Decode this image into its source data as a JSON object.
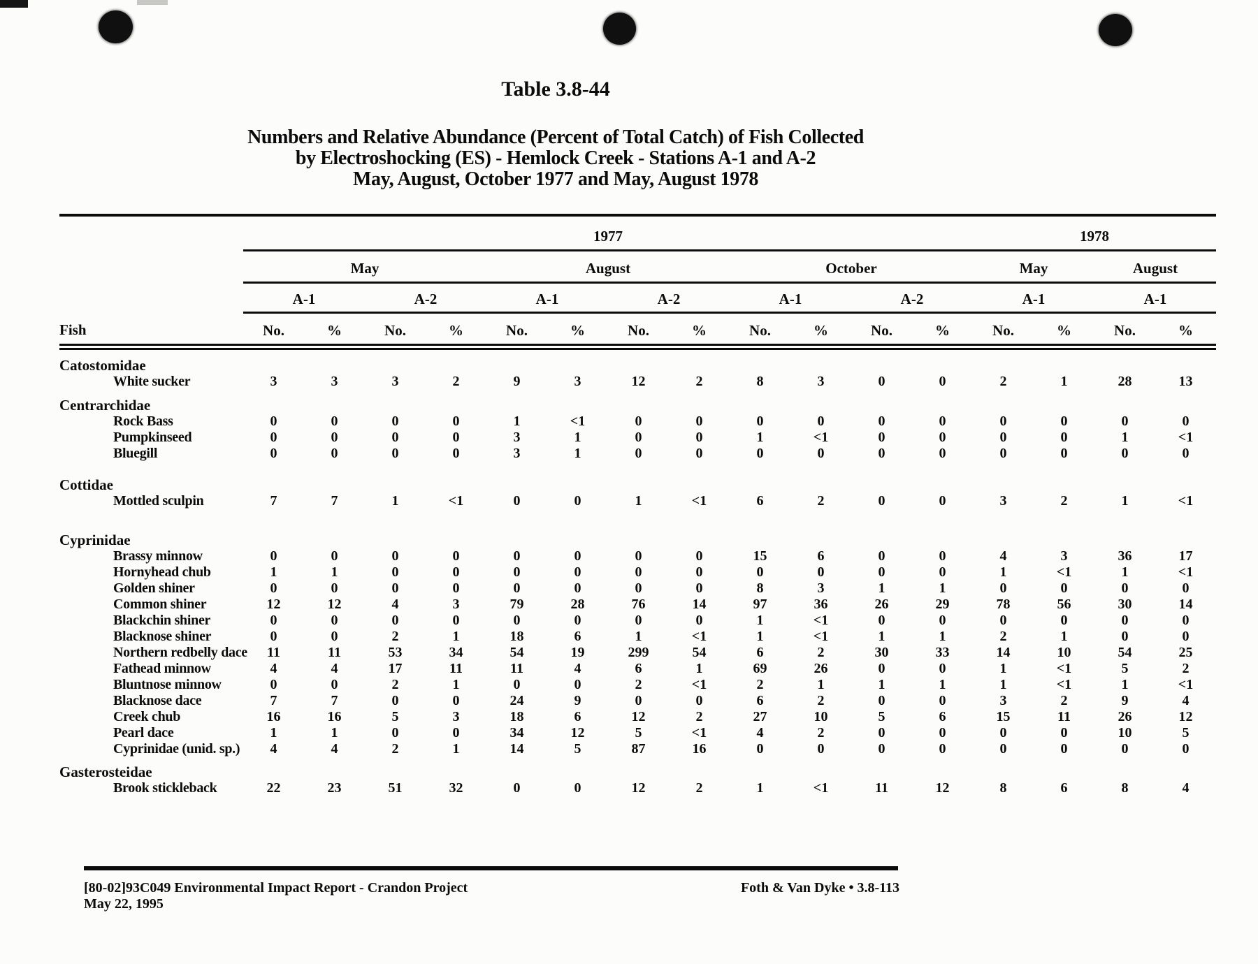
{
  "document": {
    "table_number": "Table 3.8-44",
    "title_lines": [
      "Numbers and Relative Abundance (Percent of Total Catch) of Fish Collected",
      "by Electroshocking (ES) - Hemlock Creek - Stations A-1 and A-2",
      "May, August, October 1977 and May, August 1978"
    ]
  },
  "scan_marks": {
    "punch_hole_count": 3
  },
  "table": {
    "row_header": "Fish",
    "year_groups": [
      {
        "label": "1977",
        "span": 12
      },
      {
        "label": "1978",
        "span": 4
      }
    ],
    "month_groups": [
      {
        "label": "May",
        "span": 4
      },
      {
        "label": "August",
        "span": 4
      },
      {
        "label": "October",
        "span": 4
      },
      {
        "label": "May",
        "span": 2
      },
      {
        "label": "August",
        "span": 2
      }
    ],
    "station_groups": [
      {
        "label": "A-1",
        "span": 2
      },
      {
        "label": "A-2",
        "span": 2
      },
      {
        "label": "A-1",
        "span": 2
      },
      {
        "label": "A-2",
        "span": 2
      },
      {
        "label": "A-1",
        "span": 2
      },
      {
        "label": "A-2",
        "span": 2
      },
      {
        "label": "A-1",
        "span": 2
      },
      {
        "label": "A-1",
        "span": 2
      }
    ],
    "measure_labels": [
      "No.",
      "%",
      "No.",
      "%",
      "No.",
      "%",
      "No.",
      "%",
      "No.",
      "%",
      "No.",
      "%",
      "No.",
      "%",
      "No.",
      "%"
    ],
    "families": [
      {
        "family": "Catostomidae",
        "species": [
          {
            "name": "White sucker",
            "values": [
              "3",
              "3",
              "3",
              "2",
              "9",
              "3",
              "12",
              "2",
              "8",
              "3",
              "0",
              "0",
              "2",
              "1",
              "28",
              "13"
            ]
          }
        ]
      },
      {
        "family": "Centrarchidae",
        "species": [
          {
            "name": "Rock Bass",
            "values": [
              "0",
              "0",
              "0",
              "0",
              "1",
              "<1",
              "0",
              "0",
              "0",
              "0",
              "0",
              "0",
              "0",
              "0",
              "0",
              "0"
            ]
          },
          {
            "name": "Pumpkinseed",
            "values": [
              "0",
              "0",
              "0",
              "0",
              "3",
              "1",
              "0",
              "0",
              "1",
              "<1",
              "0",
              "0",
              "0",
              "0",
              "1",
              "<1"
            ]
          },
          {
            "name": "Bluegill",
            "values": [
              "0",
              "0",
              "0",
              "0",
              "3",
              "1",
              "0",
              "0",
              "0",
              "0",
              "0",
              "0",
              "0",
              "0",
              "0",
              "0"
            ]
          }
        ]
      },
      {
        "family": "Cottidae",
        "species": [
          {
            "name": "Mottled sculpin",
            "values": [
              "7",
              "7",
              "1",
              "<1",
              "0",
              "0",
              "1",
              "<1",
              "6",
              "2",
              "0",
              "0",
              "3",
              "2",
              "1",
              "<1"
            ]
          }
        ]
      },
      {
        "family": "Cyprinidae",
        "species": [
          {
            "name": "Brassy minnow",
            "values": [
              "0",
              "0",
              "0",
              "0",
              "0",
              "0",
              "0",
              "0",
              "15",
              "6",
              "0",
              "0",
              "4",
              "3",
              "36",
              "17"
            ]
          },
          {
            "name": "Hornyhead chub",
            "values": [
              "1",
              "1",
              "0",
              "0",
              "0",
              "0",
              "0",
              "0",
              "0",
              "0",
              "0",
              "0",
              "1",
              "<1",
              "1",
              "<1"
            ]
          },
          {
            "name": "Golden shiner",
            "values": [
              "0",
              "0",
              "0",
              "0",
              "0",
              "0",
              "0",
              "0",
              "8",
              "3",
              "1",
              "1",
              "0",
              "0",
              "0",
              "0"
            ]
          },
          {
            "name": "Common shiner",
            "values": [
              "12",
              "12",
              "4",
              "3",
              "79",
              "28",
              "76",
              "14",
              "97",
              "36",
              "26",
              "29",
              "78",
              "56",
              "30",
              "14"
            ]
          },
          {
            "name": "Blackchin shiner",
            "values": [
              "0",
              "0",
              "0",
              "0",
              "0",
              "0",
              "0",
              "0",
              "1",
              "<1",
              "0",
              "0",
              "0",
              "0",
              "0",
              "0"
            ]
          },
          {
            "name": "Blacknose shiner",
            "values": [
              "0",
              "0",
              "2",
              "1",
              "18",
              "6",
              "1",
              "<1",
              "1",
              "<1",
              "1",
              "1",
              "2",
              "1",
              "0",
              "0"
            ]
          },
          {
            "name": "Northern redbelly dace",
            "values": [
              "11",
              "11",
              "53",
              "34",
              "54",
              "19",
              "299",
              "54",
              "6",
              "2",
              "30",
              "33",
              "14",
              "10",
              "54",
              "25"
            ]
          },
          {
            "name": "Fathead minnow",
            "values": [
              "4",
              "4",
              "17",
              "11",
              "11",
              "4",
              "6",
              "1",
              "69",
              "26",
              "0",
              "0",
              "1",
              "<1",
              "5",
              "2"
            ]
          },
          {
            "name": "Bluntnose minnow",
            "values": [
              "0",
              "0",
              "2",
              "1",
              "0",
              "0",
              "2",
              "<1",
              "2",
              "1",
              "1",
              "1",
              "1",
              "<1",
              "1",
              "<1"
            ]
          },
          {
            "name": "Blacknose dace",
            "values": [
              "7",
              "7",
              "0",
              "0",
              "24",
              "9",
              "0",
              "0",
              "6",
              "2",
              "0",
              "0",
              "3",
              "2",
              "9",
              "4"
            ]
          },
          {
            "name": "Creek chub",
            "values": [
              "16",
              "16",
              "5",
              "3",
              "18",
              "6",
              "12",
              "2",
              "27",
              "10",
              "5",
              "6",
              "15",
              "11",
              "26",
              "12"
            ]
          },
          {
            "name": "Pearl dace",
            "values": [
              "1",
              "1",
              "0",
              "0",
              "34",
              "12",
              "5",
              "<1",
              "4",
              "2",
              "0",
              "0",
              "0",
              "0",
              "10",
              "5"
            ]
          },
          {
            "name": "Cyprinidae (unid. sp.)",
            "values": [
              "4",
              "4",
              "2",
              "1",
              "14",
              "5",
              "87",
              "16",
              "0",
              "0",
              "0",
              "0",
              "0",
              "0",
              "0",
              "0"
            ]
          }
        ]
      },
      {
        "family": "Gasterosteidae",
        "species": [
          {
            "name": "Brook stickleback",
            "values": [
              "22",
              "23",
              "51",
              "32",
              "0",
              "0",
              "12",
              "2",
              "1",
              "<1",
              "11",
              "12",
              "8",
              "6",
              "8",
              "4"
            ]
          }
        ]
      }
    ]
  },
  "footer": {
    "doc_id_line": "[80-02]93C049  Environmental Impact Report - Crandon Project",
    "date_line": "May 22, 1995",
    "right_text": "Foth & Van Dyke • 3.8-113"
  }
}
